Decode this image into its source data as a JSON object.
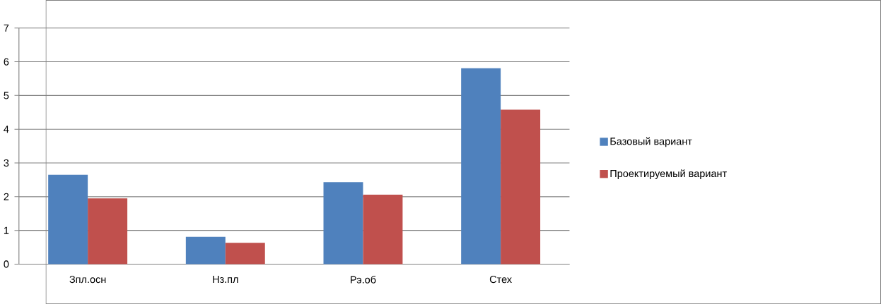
{
  "chart_data": {
    "type": "bar",
    "categories": [
      "Зпл.осн",
      "Нз.пл",
      "Рэ.об",
      "Стех"
    ],
    "series": [
      {
        "name": "Базовый вариант",
        "color": "#4f81bd",
        "values": [
          2.65,
          0.81,
          2.43,
          5.81
        ]
      },
      {
        "name": "Проектируемый вариант",
        "color": "#c0504d",
        "values": [
          1.95,
          0.63,
          2.06,
          4.58
        ]
      }
    ],
    "ylim": [
      0,
      7
    ],
    "yticks": [
      0,
      1,
      2,
      3,
      4,
      5,
      6,
      7
    ],
    "grid": "y",
    "legend": "right"
  }
}
